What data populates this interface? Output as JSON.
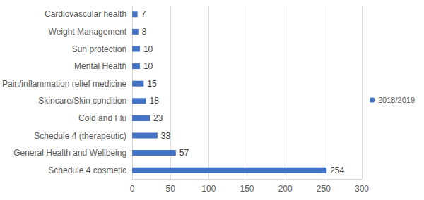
{
  "chart_data": {
    "type": "bar",
    "orientation": "horizontal",
    "categories": [
      "Cardiovascular health",
      "Weight Management",
      "Sun protection",
      "Mental Health",
      "Pain/inflammation relief medicine",
      "Skincare/Skin condition",
      "Cold and Flu",
      "Schedule 4 (therapeutic)",
      "General Health and Wellbeing",
      "Schedule 4 cosmetic"
    ],
    "series": [
      {
        "name": "2018/2019",
        "color": "#4472c4",
        "values": [
          7,
          8,
          10,
          10,
          15,
          18,
          23,
          33,
          57,
          254
        ]
      }
    ],
    "xlim": [
      0,
      300
    ],
    "xticks": [
      0,
      50,
      100,
      150,
      200,
      250,
      300
    ],
    "grid": true,
    "legend": "right",
    "data_labels": true
  }
}
